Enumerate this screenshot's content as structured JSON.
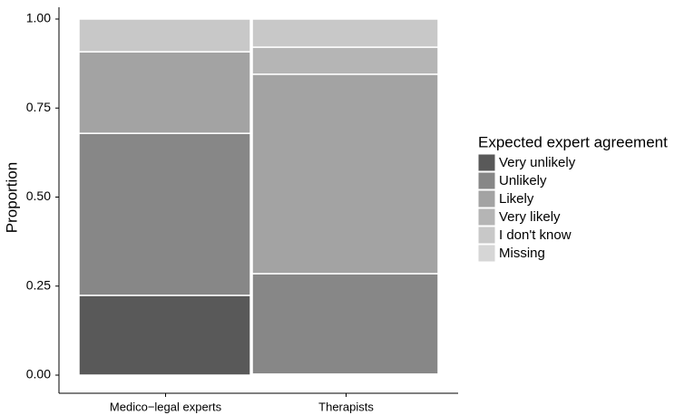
{
  "chart_data": {
    "type": "mosaic",
    "y_label": "Proportion",
    "categories": [
      "Medico−legal experts",
      "Therapists"
    ],
    "widths": [
      0.48,
      0.52
    ],
    "legend_title": "Expected expert agreement",
    "series": [
      {
        "name": "Very unlikely",
        "color": "#595959",
        "values": [
          0.224,
          0.003
        ]
      },
      {
        "name": "Unlikely",
        "color": "#878787",
        "values": [
          0.455,
          0.282
        ]
      },
      {
        "name": "Likely",
        "color": "#a3a3a3",
        "values": [
          0.229,
          0.56
        ]
      },
      {
        "name": "Very likely",
        "color": "#b5b5b5",
        "values": [
          0,
          0.076
        ]
      },
      {
        "name": "I don't know",
        "color": "#c8c8c8",
        "values": [
          0.092,
          0.079
        ]
      },
      {
        "name": "Missing",
        "color": "#d6d6d6",
        "values": [
          0,
          0
        ]
      }
    ],
    "ylim": [
      0,
      1
    ],
    "yticks": [
      {
        "value": 0,
        "label": "0.00"
      },
      {
        "value": 0.25,
        "label": "0.25"
      },
      {
        "value": 0.5,
        "label": "0.50"
      },
      {
        "value": 0.75,
        "label": "0.75"
      },
      {
        "value": 1,
        "label": "1.00"
      }
    ],
    "legend_position": "right"
  }
}
